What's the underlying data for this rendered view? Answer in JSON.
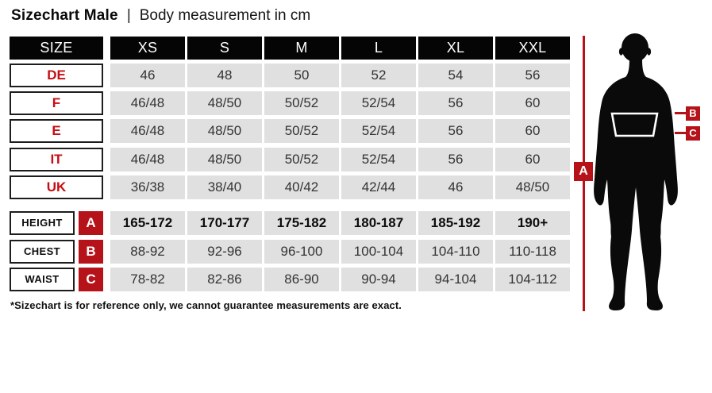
{
  "title": {
    "main": "Sizechart Male",
    "separator": "|",
    "subtitle": "Body measurement in cm"
  },
  "colors": {
    "red_mark": "#b51219",
    "red_text": "#c60d12",
    "header_bg": "#050505",
    "cell_bg": "#e0e0e0",
    "silhouette": "#0a0a0a"
  },
  "table": {
    "header": {
      "label": "SIZE",
      "columns": [
        "XS",
        "S",
        "M",
        "L",
        "XL",
        "XXL"
      ]
    },
    "size_rows": [
      {
        "label": "DE",
        "values": [
          "46",
          "48",
          "50",
          "52",
          "54",
          "56"
        ]
      },
      {
        "label": "F",
        "values": [
          "46/48",
          "48/50",
          "50/52",
          "52/54",
          "56",
          "60"
        ]
      },
      {
        "label": "E",
        "values": [
          "46/48",
          "48/50",
          "50/52",
          "52/54",
          "56",
          "60"
        ]
      },
      {
        "label": "IT",
        "values": [
          "46/48",
          "48/50",
          "50/52",
          "52/54",
          "56",
          "60"
        ]
      },
      {
        "label": "UK",
        "values": [
          "36/38",
          "38/40",
          "40/42",
          "42/44",
          "46",
          "48/50"
        ]
      }
    ],
    "measure_rows": [
      {
        "label": "HEIGHT",
        "marker": "A",
        "bold": true,
        "values": [
          "165-172",
          "170-177",
          "175-182",
          "180-187",
          "185-192",
          "190+"
        ]
      },
      {
        "label": "CHEST",
        "marker": "B",
        "bold": false,
        "values": [
          "88-92",
          "92-96",
          "96-100",
          "100-104",
          "104-110",
          "110-118"
        ]
      },
      {
        "label": "WAIST",
        "marker": "C",
        "bold": false,
        "values": [
          "78-82",
          "82-86",
          "86-90",
          "90-94",
          "94-104",
          "104-112"
        ]
      }
    ]
  },
  "figure": {
    "markers": {
      "height": "A",
      "chest": "B",
      "waist": "C"
    }
  },
  "footnote": "*Sizechart is for reference only, we cannot guarantee measurements are exact.",
  "chart_data": {
    "type": "table",
    "title": "Sizechart Male | Body measurement in cm",
    "columns": [
      "SIZE",
      "XS",
      "S",
      "M",
      "L",
      "XL",
      "XXL"
    ],
    "rows": [
      [
        "DE",
        "46",
        "48",
        "50",
        "52",
        "54",
        "56"
      ],
      [
        "F",
        "46/48",
        "48/50",
        "50/52",
        "52/54",
        "56",
        "60"
      ],
      [
        "E",
        "46/48",
        "48/50",
        "50/52",
        "52/54",
        "56",
        "60"
      ],
      [
        "IT",
        "46/48",
        "48/50",
        "50/52",
        "52/54",
        "56",
        "60"
      ],
      [
        "UK",
        "36/38",
        "38/40",
        "40/42",
        "42/44",
        "46",
        "48/50"
      ],
      [
        "HEIGHT (A)",
        "165-172",
        "170-177",
        "175-182",
        "180-187",
        "185-192",
        "190+"
      ],
      [
        "CHEST (B)",
        "88-92",
        "92-96",
        "96-100",
        "100-104",
        "104-110",
        "110-118"
      ],
      [
        "WAIST (C)",
        "78-82",
        "82-86",
        "86-90",
        "90-94",
        "94-104",
        "104-112"
      ]
    ],
    "footnote": "*Sizechart is for reference only, we cannot guarantee measurements are exact."
  }
}
